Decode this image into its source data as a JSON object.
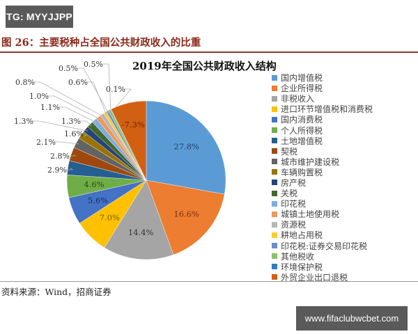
{
  "badges": {
    "top_left": "TG: MYYJJPP",
    "bottom_right": "www.fifaclubwcbet.com"
  },
  "figure": {
    "title": "图 26：主要税种占全国公共财政收入的比重",
    "source": "资料来源：Wind，招商证券"
  },
  "chart_data": {
    "type": "pie",
    "title": "2019年全国公共财政收入结构",
    "legend_position": "right",
    "categories": [
      "国内增值税",
      "企业所得税",
      "非税收入",
      "进口环节增值税和消费税",
      "国内消费税",
      "个人所得税",
      "土地增值税",
      "契税",
      "城市维护建设税",
      "车辆购置税",
      "房产税",
      "关税",
      "印花税",
      "城镇土地使用税",
      "资源税",
      "耕地占用税",
      "印花税:证券交易印花税",
      "其他税收",
      "环境保护税",
      "外贸企业出口退税"
    ],
    "values": [
      27.8,
      16.6,
      14.4,
      7.0,
      5.6,
      4.6,
      2.9,
      2.8,
      2.1,
      1.6,
      1.3,
      1.3,
      1.1,
      1.0,
      0.8,
      0.6,
      0.5,
      0.5,
      0.1,
      -7.3
    ],
    "labels": [
      "27.8%",
      "16.6%",
      "14.4%",
      "7.0%",
      "5.6%",
      "4.6%",
      "2.9%",
      "2.8%",
      "2.1%",
      "1.6%",
      "1.3%",
      "1.3%",
      "1.1%",
      "1.0%",
      "0.8%",
      "0.6%",
      "0.5%",
      "0.5%",
      "0.1%",
      "-7.3%"
    ],
    "colors": [
      "#5b9bd5",
      "#ed7d31",
      "#a5a5a5",
      "#ffc000",
      "#4472c4",
      "#70ad47",
      "#255e91",
      "#9e480e",
      "#636363",
      "#997300",
      "#264478",
      "#43682b",
      "#7cafdd",
      "#f1975a",
      "#b7b7b7",
      "#ffcd33",
      "#698ed0",
      "#8cc168",
      "#327dc2",
      "#d26012"
    ],
    "unit": "%"
  }
}
